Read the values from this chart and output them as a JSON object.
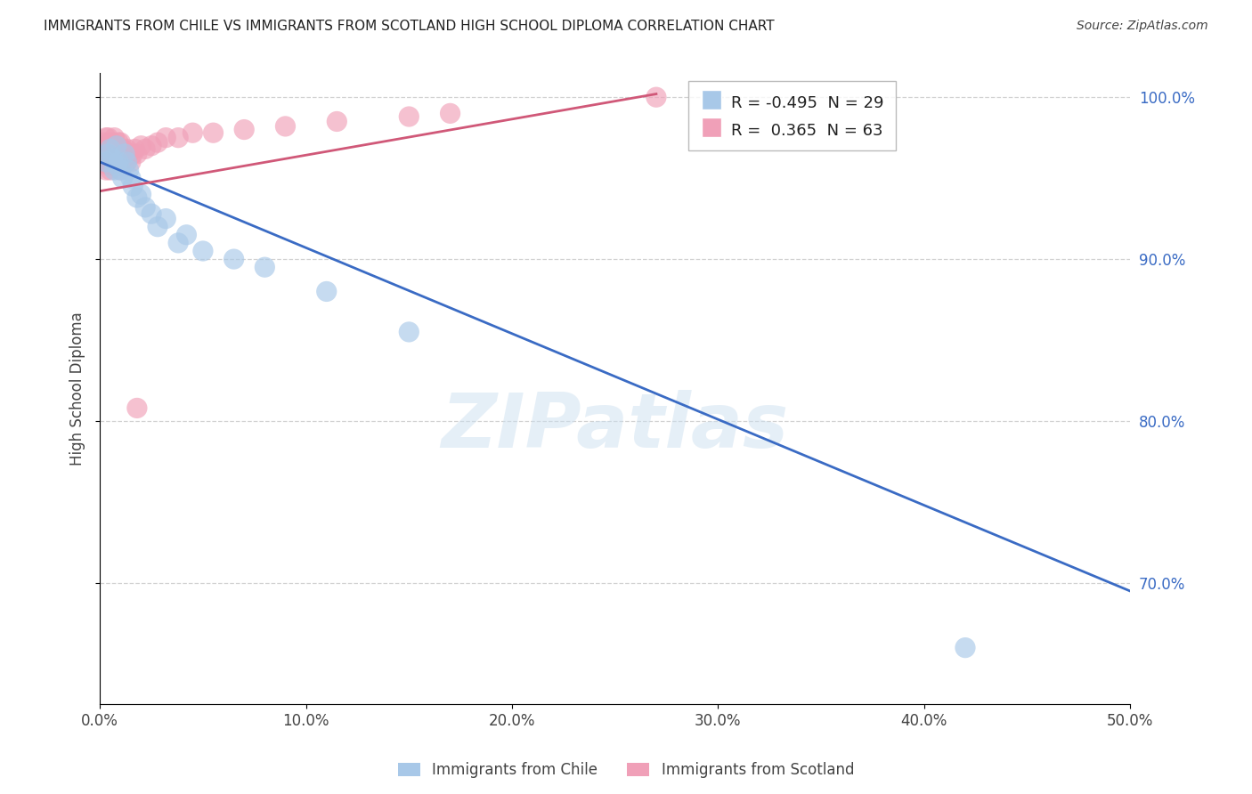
{
  "title": "IMMIGRANTS FROM CHILE VS IMMIGRANTS FROM SCOTLAND HIGH SCHOOL DIPLOMA CORRELATION CHART",
  "source": "Source: ZipAtlas.com",
  "ylabel": "High School Diploma",
  "legend_labels": [
    "Immigrants from Chile",
    "Immigrants from Scotland"
  ],
  "chile_color": "#a8c8e8",
  "scotland_color": "#f0a0b8",
  "chile_line_color": "#3A6BC4",
  "scotland_line_color": "#D05878",
  "R_chile": -0.495,
  "N_chile": 29,
  "R_scotland": 0.365,
  "N_scotland": 63,
  "xmin": 0.0,
  "xmax": 0.5,
  "ymin": 0.625,
  "ymax": 1.015,
  "yticks": [
    0.7,
    0.8,
    0.9,
    1.0
  ],
  "xticks": [
    0.0,
    0.1,
    0.2,
    0.3,
    0.4,
    0.5
  ],
  "watermark": "ZIPatlas",
  "chile_scatter_x": [
    0.003,
    0.004,
    0.005,
    0.006,
    0.007,
    0.008,
    0.008,
    0.009,
    0.01,
    0.011,
    0.012,
    0.013,
    0.014,
    0.015,
    0.016,
    0.018,
    0.02,
    0.022,
    0.025,
    0.028,
    0.032,
    0.038,
    0.042,
    0.05,
    0.065,
    0.08,
    0.11,
    0.15,
    0.42
  ],
  "chile_scatter_y": [
    0.96,
    0.965,
    0.968,
    0.962,
    0.955,
    0.958,
    0.97,
    0.96,
    0.955,
    0.95,
    0.965,
    0.96,
    0.955,
    0.95,
    0.945,
    0.938,
    0.94,
    0.932,
    0.928,
    0.92,
    0.925,
    0.91,
    0.915,
    0.905,
    0.9,
    0.895,
    0.88,
    0.855,
    0.66
  ],
  "scotland_scatter_x": [
    0.001,
    0.001,
    0.002,
    0.002,
    0.002,
    0.003,
    0.003,
    0.003,
    0.003,
    0.004,
    0.004,
    0.004,
    0.004,
    0.005,
    0.005,
    0.005,
    0.005,
    0.005,
    0.006,
    0.006,
    0.006,
    0.006,
    0.006,
    0.007,
    0.007,
    0.007,
    0.007,
    0.007,
    0.008,
    0.008,
    0.008,
    0.009,
    0.009,
    0.009,
    0.01,
    0.01,
    0.01,
    0.01,
    0.011,
    0.011,
    0.012,
    0.012,
    0.013,
    0.013,
    0.014,
    0.015,
    0.016,
    0.017,
    0.018,
    0.02,
    0.022,
    0.025,
    0.028,
    0.032,
    0.038,
    0.045,
    0.055,
    0.07,
    0.09,
    0.115,
    0.15,
    0.17,
    0.27
  ],
  "scotland_scatter_y": [
    0.965,
    0.97,
    0.96,
    0.968,
    0.972,
    0.955,
    0.96,
    0.968,
    0.975,
    0.958,
    0.965,
    0.97,
    0.975,
    0.96,
    0.965,
    0.97,
    0.955,
    0.972,
    0.96,
    0.968,
    0.958,
    0.965,
    0.972,
    0.96,
    0.965,
    0.97,
    0.958,
    0.975,
    0.96,
    0.965,
    0.97,
    0.96,
    0.965,
    0.972,
    0.96,
    0.955,
    0.965,
    0.972,
    0.96,
    0.968,
    0.96,
    0.965,
    0.96,
    0.968,
    0.965,
    0.96,
    0.965,
    0.968,
    0.965,
    0.97,
    0.968,
    0.97,
    0.972,
    0.975,
    0.975,
    0.978,
    0.978,
    0.98,
    0.982,
    0.985,
    0.988,
    0.99,
    1.0
  ],
  "scotland_outlier_x": [
    0.018
  ],
  "scotland_outlier_y": [
    0.808
  ],
  "chile_line_x0": 0.0,
  "chile_line_x1": 0.5,
  "chile_line_y0": 0.96,
  "chile_line_y1": 0.695,
  "scotland_line_x0": 0.0,
  "scotland_line_x1": 0.27,
  "scotland_line_y0": 0.942,
  "scotland_line_y1": 1.002,
  "background_color": "#ffffff",
  "grid_color": "#cccccc",
  "tick_color": "#3A6BC4"
}
